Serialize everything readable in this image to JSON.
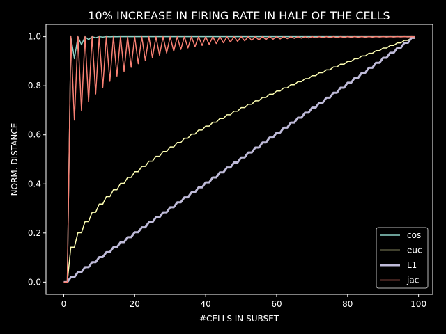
{
  "chart_data": {
    "type": "line",
    "title": "10% INCREASE IN FIRING RATE IN HALF OF THE CELLS",
    "xlabel": "#CELLS IN SUBSET",
    "ylabel": "NORM. DISTANCE",
    "xlim": [
      -5,
      104
    ],
    "ylim": [
      -0.05,
      1.05
    ],
    "xticks": [
      0,
      20,
      40,
      60,
      80,
      100
    ],
    "yticks": [
      0.0,
      0.2,
      0.4,
      0.6,
      0.8,
      1.0
    ],
    "xtick_labels": [
      "0",
      "20",
      "40",
      "60",
      "80",
      "100"
    ],
    "ytick_labels": [
      "0.0",
      "0.2",
      "0.4",
      "0.6",
      "0.8",
      "1.0"
    ],
    "grid": false,
    "legend_position": "lower right",
    "series": [
      {
        "name": "cos",
        "color": "#8dd3c7",
        "width": 1.5,
        "model": "cos",
        "x_start": 0,
        "x_end": 99
      },
      {
        "name": "euc",
        "color": "#feffb3",
        "width": 1.5,
        "model": "euc",
        "x_start": 0,
        "x_end": 99
      },
      {
        "name": "L1",
        "color": "#bfbbd9",
        "width": 3,
        "model": "l1",
        "x_start": 0,
        "x_end": 99
      },
      {
        "name": "jac",
        "color": "#fa8174",
        "width": 1.5,
        "model": "jac",
        "x_start": 0,
        "x_end": 99
      }
    ]
  }
}
